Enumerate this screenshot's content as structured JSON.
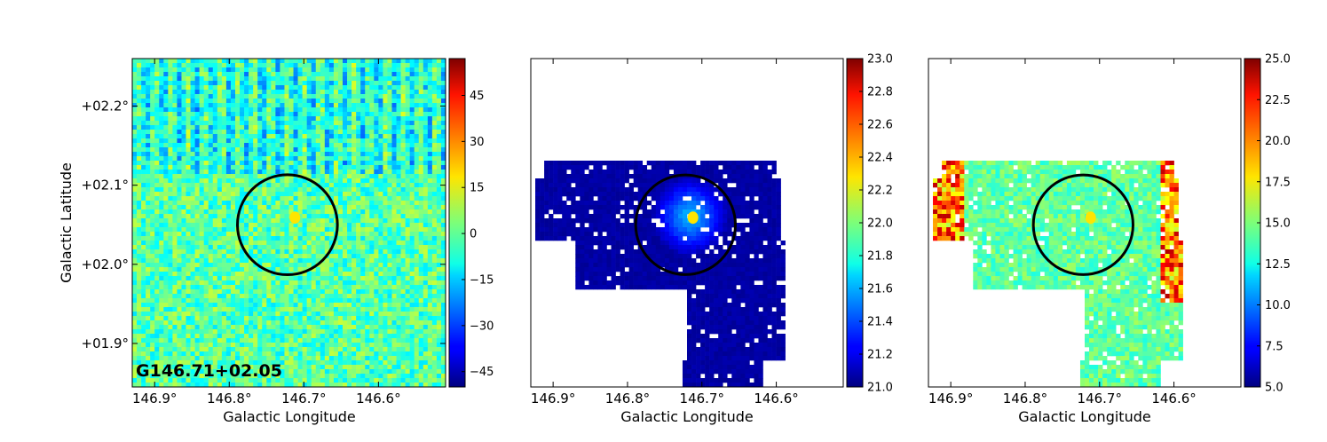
{
  "source_label": "G146.71+02.05",
  "xlabel": "Galactic Longitude",
  "ylabel": "Galactic Latitude",
  "chart_data": [
    {
      "type": "heatmap",
      "panel": 1,
      "colormap": "jet",
      "xlabel": "Galactic Longitude",
      "ylabel": "Galactic Latitude",
      "x_ticks": [
        146.9,
        146.8,
        146.7,
        146.6
      ],
      "x_tick_labels": [
        "146.9°",
        "146.8°",
        "146.7°",
        "146.6°"
      ],
      "y_ticks": [
        1.9,
        2.0,
        2.1,
        2.2
      ],
      "y_tick_labels": [
        "+01.9°",
        "+02.0°",
        "+02.1°",
        "+02.2°"
      ],
      "xlim": [
        146.93,
        146.51
      ],
      "ylim": [
        1.845,
        2.26
      ],
      "colorbar": {
        "min": -50,
        "max": 57,
        "ticks": [
          -45,
          -30,
          -15,
          0,
          15,
          30,
          45
        ],
        "tick_labels": [
          "−45",
          "−30",
          "−15",
          "0",
          "15",
          "30",
          "45"
        ]
      },
      "circle": {
        "l": 146.722,
        "b": 2.05,
        "radius_deg": 0.067
      },
      "source_peak": {
        "l": 146.712,
        "b": 2.059
      }
    },
    {
      "type": "heatmap",
      "panel": 2,
      "colormap": "jet",
      "x_ticks": [
        146.9,
        146.8,
        146.7,
        146.6
      ],
      "x_tick_labels": [
        "146.9°",
        "146.8°",
        "146.7°",
        "146.6°"
      ],
      "xlabel": "Galactic Longitude",
      "xlim": [
        146.93,
        146.51
      ],
      "ylim": [
        1.845,
        2.26
      ],
      "colorbar": {
        "min": 21.0,
        "max": 23.0,
        "ticks": [
          21.0,
          21.2,
          21.4,
          21.6,
          21.8,
          22.0,
          22.2,
          22.4,
          22.6,
          22.8,
          23.0
        ],
        "tick_labels": [
          "21.0",
          "21.2",
          "21.4",
          "21.6",
          "21.8",
          "22.0",
          "22.2",
          "22.4",
          "22.6",
          "22.8",
          "23.0"
        ]
      },
      "circle": {
        "l": 146.722,
        "b": 2.05,
        "radius_deg": 0.067
      },
      "source_peak": {
        "l": 146.712,
        "b": 2.059
      }
    },
    {
      "type": "heatmap",
      "panel": 3,
      "colormap": "jet",
      "x_ticks": [
        146.9,
        146.8,
        146.7,
        146.6
      ],
      "x_tick_labels": [
        "146.9°",
        "146.8°",
        "146.7°",
        "146.6°"
      ],
      "xlabel": "Galactic Longitude",
      "xlim": [
        146.93,
        146.51
      ],
      "ylim": [
        1.845,
        2.26
      ],
      "colorbar": {
        "min": 5.0,
        "max": 25.0,
        "ticks": [
          5.0,
          7.5,
          10.0,
          12.5,
          15.0,
          17.5,
          20.0,
          22.5,
          25.0
        ],
        "tick_labels": [
          "5.0",
          "7.5",
          "10.0",
          "12.5",
          "15.0",
          "17.5",
          "20.0",
          "22.5",
          "25.0"
        ]
      },
      "circle": {
        "l": 146.722,
        "b": 2.05,
        "radius_deg": 0.067
      },
      "source_peak": {
        "l": 146.712,
        "b": 2.059
      }
    }
  ]
}
